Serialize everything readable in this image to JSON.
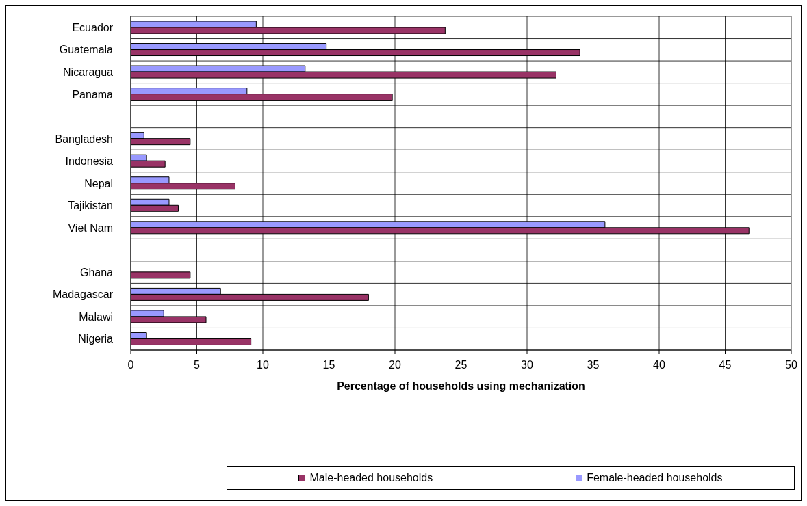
{
  "chart_data": {
    "type": "bar",
    "orientation": "horizontal",
    "xlabel": "Percentage of households using mechanization",
    "categories": [
      "Ecuador",
      "Guatemala",
      "Nicaragua",
      "Panama",
      null,
      "Bangladesh",
      "Indonesia",
      "Nepal",
      "Tajikistan",
      "Viet Nam",
      null,
      "Ghana",
      "Madagascar",
      "Malawi",
      "Nigeria"
    ],
    "series": [
      {
        "name": "Male-headed households",
        "color": "#993366",
        "values": [
          23.8,
          34.0,
          32.2,
          19.8,
          null,
          4.5,
          2.6,
          7.9,
          3.6,
          46.8,
          null,
          4.5,
          18.0,
          5.7,
          9.1
        ]
      },
      {
        "name": "Female-headed households",
        "color": "#9999ff",
        "values": [
          9.5,
          14.8,
          13.2,
          8.8,
          null,
          1.0,
          1.2,
          2.9,
          2.9,
          35.9,
          null,
          null,
          6.8,
          2.5,
          1.2
        ]
      }
    ],
    "xlim": [
      0,
      50
    ],
    "xticks": [
      0,
      5,
      10,
      15,
      20,
      25,
      30,
      35,
      40,
      45,
      50
    ],
    "grid": true,
    "legend": "bottom"
  }
}
